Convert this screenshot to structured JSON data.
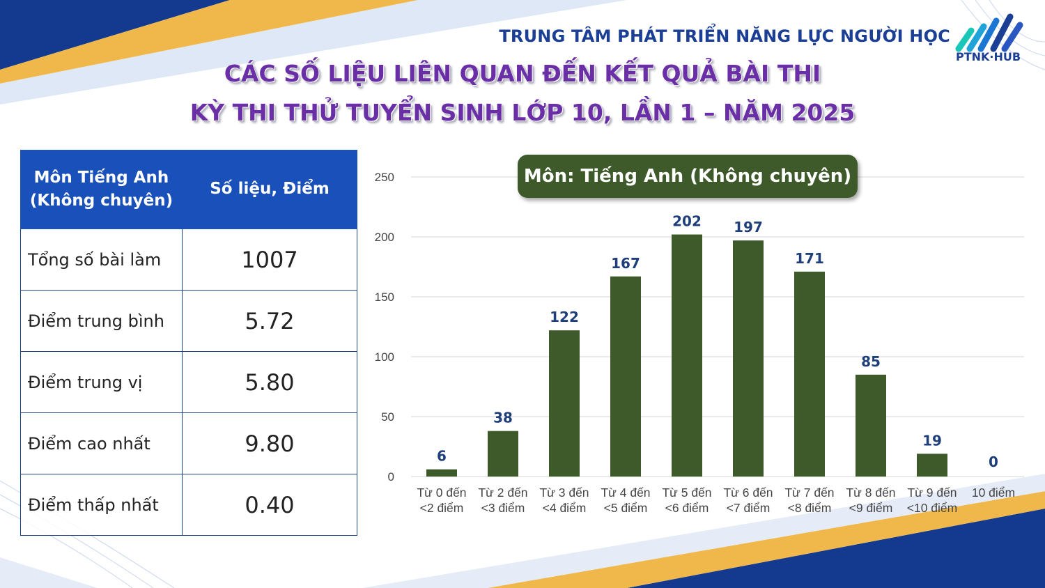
{
  "header": {
    "organization": "TRUNG TÂM PHÁT TRIỂN NĂNG LỰC NGƯỜI HỌC",
    "logo_text": "PTNK·HUB",
    "title_line1": "CÁC SỐ LIỆU LIÊN QUAN ĐẾN KẾT QUẢ BÀI THI",
    "title_line2": "KỲ THI THỬ TUYỂN SINH LỚP 10, LẦN 1 – NĂM 2025"
  },
  "stats_table": {
    "header_col1_line1": "Môn Tiếng Anh",
    "header_col1_line2": "(Không chuyên)",
    "header_col2": "Số liệu, Điểm",
    "rows": [
      {
        "label": "Tổng số bài làm",
        "value": "1007"
      },
      {
        "label": "Điểm trung bình",
        "value": "5.72"
      },
      {
        "label": "Điểm trung vị",
        "value": "5.80"
      },
      {
        "label": "Điểm cao nhất",
        "value": "9.80"
      },
      {
        "label": "Điểm thấp nhất",
        "value": "0.40"
      }
    ]
  },
  "colors": {
    "bar": "#3e5a2a",
    "bar_label": "#1f3f7a",
    "title": "#6a2fa6",
    "table_header": "#1950b9",
    "brand_blue": "#1a3f94"
  },
  "chart_data": {
    "type": "bar",
    "title": "Môn: Tiếng Anh (Không chuyên)",
    "categories": [
      [
        "Từ 0 đến",
        "<2 điểm"
      ],
      [
        "Từ 2 đến",
        "<3 điểm"
      ],
      [
        "Từ 3 đến",
        "<4 điểm"
      ],
      [
        "Từ 4 đến",
        "<5 điểm"
      ],
      [
        "Từ 5 đến",
        "<6 điểm"
      ],
      [
        "Từ 6 đến",
        "<7 điểm"
      ],
      [
        "Từ 7 đến",
        "<8 điểm"
      ],
      [
        "Từ 8 đến",
        "<9 điểm"
      ],
      [
        "Từ 9 đến",
        "<10 điểm"
      ],
      [
        "10 điểm"
      ]
    ],
    "values": [
      6,
      38,
      122,
      167,
      202,
      197,
      171,
      85,
      19,
      0
    ],
    "yticks": [
      0,
      50,
      100,
      150,
      200,
      250
    ],
    "ylim": [
      0,
      250
    ],
    "grid": true,
    "data_labels": true
  }
}
